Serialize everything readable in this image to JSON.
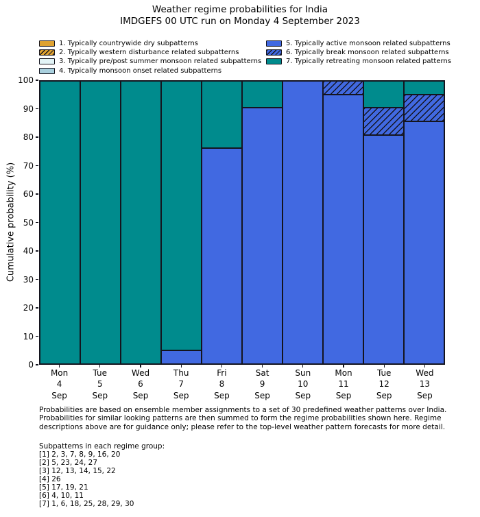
{
  "title": "Weather regime probabilities for India",
  "subtitle": "IMDGEFS 00 UTC run on Monday 4 September 2023",
  "ylabel": "Cumulative probability (%)",
  "legend": {
    "items": [
      {
        "id": 1,
        "label": "1. Typically countrywide dry subpatterns",
        "color": "#dfa231",
        "hatch": false,
        "column": 0
      },
      {
        "id": 2,
        "label": "2. Typically western disturbance related subpatterns",
        "color": "#dfa231",
        "hatch": true,
        "column": 0
      },
      {
        "id": 3,
        "label": "3. Typically pre/post summer monsoon related subpatterns",
        "color": "#e2f4f7",
        "hatch": false,
        "column": 0
      },
      {
        "id": 4,
        "label": "4. Typically monsoon onset related subpatterns",
        "color": "#a9d0de",
        "hatch": false,
        "column": 0
      },
      {
        "id": 5,
        "label": "5. Typically active monsoon related subpatterns",
        "color": "#4169e1",
        "hatch": false,
        "column": 1
      },
      {
        "id": 6,
        "label": "6. Typically break monsoon related subpatterns",
        "color": "#4169e1",
        "hatch": true,
        "column": 1
      },
      {
        "id": 7,
        "label": "7. Typically retreating monsoon related patterns",
        "color": "#008b8d",
        "hatch": false,
        "column": 1
      }
    ]
  },
  "chart_data": {
    "type": "bar",
    "stacked": true,
    "title": "Weather regime probabilities for India",
    "subtitle": "IMDGEFS 00 UTC run on Monday 4 September 2023",
    "xlabel": "",
    "ylabel": "Cumulative probability (%)",
    "ylim": [
      0,
      100
    ],
    "yticks": [
      0,
      10,
      20,
      30,
      40,
      50,
      60,
      70,
      80,
      90,
      100
    ],
    "grid": false,
    "legend_position": "top",
    "edge_color": "#14141e",
    "categories": [
      [
        "Mon",
        "4",
        "Sep"
      ],
      [
        "Tue",
        "5",
        "Sep"
      ],
      [
        "Wed",
        "6",
        "Sep"
      ],
      [
        "Thu",
        "7",
        "Sep"
      ],
      [
        "Fri",
        "8",
        "Sep"
      ],
      [
        "Sat",
        "9",
        "Sep"
      ],
      [
        "Sun",
        "10",
        "Sep"
      ],
      [
        "Mon",
        "11",
        "Sep"
      ],
      [
        "Tue",
        "12",
        "Sep"
      ],
      [
        "Wed",
        "13",
        "Sep"
      ]
    ],
    "series": [
      {
        "regime": 1,
        "name": "1. Typically countrywide dry subpatterns",
        "values": [
          0,
          0,
          0,
          0,
          0,
          0,
          0,
          0,
          0,
          0
        ]
      },
      {
        "regime": 2,
        "name": "2. Typically western disturbance related subpatterns",
        "values": [
          0,
          0,
          0,
          0,
          0,
          0,
          0,
          0,
          0,
          0
        ]
      },
      {
        "regime": 3,
        "name": "3. Typically pre/post summer monsoon related subpatterns",
        "values": [
          0,
          0,
          0,
          0,
          0,
          0,
          0,
          0,
          0,
          0
        ]
      },
      {
        "regime": 4,
        "name": "4. Typically monsoon onset related subpatterns",
        "values": [
          0,
          0,
          0,
          0,
          0,
          0,
          0,
          0,
          0,
          0
        ]
      },
      {
        "regime": 5,
        "name": "5. Typically active monsoon related subpatterns",
        "values": [
          0,
          0,
          0,
          4.76,
          76.19,
          90.48,
          100,
          95.24,
          80.95,
          85.71
        ]
      },
      {
        "regime": 6,
        "name": "6. Typically break monsoon related subpatterns",
        "values": [
          0,
          0,
          0,
          0,
          0,
          0,
          0,
          4.76,
          9.52,
          9.52
        ]
      },
      {
        "regime": 7,
        "name": "7. Typically retreating monsoon related patterns",
        "values": [
          100,
          100,
          100,
          95.24,
          23.81,
          9.52,
          0,
          0,
          9.52,
          4.76
        ]
      }
    ]
  },
  "footer": {
    "lines": [
      "Probabilities are based on ensemble member assignments to a set of 30 predefined weather patterns over India.",
      "Probabilities for similar looking patterns are then summed to form the regime probabilities shown here. Regime",
      "descriptions above are for guidance only; please refer to the top-level weather pattern forecasts for more detail."
    ],
    "subpatterns_heading": "Subpatterns in each regime group:",
    "subpattern_lines": [
      "[1] 2, 3, 7, 8, 9, 16, 20",
      "[2] 5, 23, 24, 27",
      "[3] 12, 13, 14, 15, 22",
      "[4] 26",
      "[5] 17, 19, 21",
      "[6] 4, 10, 11",
      "[7] 1, 6, 18, 25, 28, 29, 30"
    ]
  }
}
